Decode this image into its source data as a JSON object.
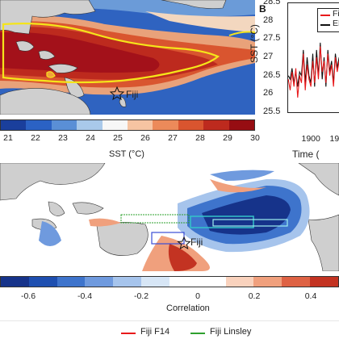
{
  "panelA": {
    "site_label": "Fiji",
    "colorbar": {
      "ticks": [
        "21",
        "22",
        "23",
        "24",
        "25",
        "26",
        "27",
        "28",
        "29",
        "30"
      ],
      "label": "SST (°C)",
      "colors": [
        "#1a3f9c",
        "#2b62c4",
        "#5a8fd6",
        "#a9c9ea",
        "#f7f7f7",
        "#f6c4a2",
        "#ec8a5a",
        "#d9552f",
        "#bd2a1e",
        "#960d12"
      ]
    }
  },
  "panelB": {
    "letter": "B",
    "ylabel": "SST (°C)",
    "xlabel": "Time (",
    "yticks": [
      "28.5",
      "28",
      "27.5",
      "27",
      "26.5",
      "26",
      "25.5"
    ],
    "xticks": [
      "1900",
      "19"
    ],
    "legend": [
      {
        "name": "Fiji F",
        "color": "#e8191b"
      },
      {
        "name": "ERS",
        "color": "#111111"
      }
    ]
  },
  "panelC": {
    "site_label": "Fiji",
    "colorbar": {
      "ticks": [
        "-0.6",
        "-0.4",
        "-0.2",
        "0",
        "0.2",
        "0.4"
      ],
      "label": "Correlation",
      "colors": [
        "#16338a",
        "#1e4fb0",
        "#3e74cc",
        "#6f9ade",
        "#a6c4ec",
        "#d7e6f6",
        "#ffffff",
        "#ffffff",
        "#f9d2bd",
        "#f0a07d",
        "#de6244",
        "#c33322"
      ]
    }
  },
  "bottom_legend": [
    {
      "name": "Fiji F14",
      "color": "#e8191b"
    },
    {
      "name": "Fiji Linsley",
      "color": "#2ea02e"
    }
  ],
  "chart_data": {
    "type": "line",
    "title": "",
    "xlabel": "Time (",
    "ylabel": "SST (°C)",
    "ylim": [
      25.5,
      28.5
    ],
    "xlim": [
      1875,
      1935
    ],
    "series": [
      {
        "name": "Fiji F",
        "x": [
          1876,
          1878,
          1880,
          1882,
          1884,
          1886,
          1888,
          1890,
          1892,
          1894,
          1896,
          1898,
          1900,
          1902,
          1904,
          1906,
          1908,
          1910,
          1912,
          1914,
          1916,
          1918,
          1920,
          1922,
          1924,
          1926,
          1928,
          1930
        ],
        "values": [
          26.4,
          26.1,
          26.6,
          26.2,
          26.7,
          25.9,
          26.5,
          26.3,
          27.1,
          26.1,
          26.8,
          26.4,
          26.2,
          26.9,
          26.3,
          27.0,
          26.4,
          27.3,
          26.6,
          26.9,
          26.3,
          27.1,
          26.5,
          26.8,
          26.2,
          27.0,
          26.6,
          26.9
        ]
      },
      {
        "name": "ERS",
        "x": [
          1876,
          1878,
          1880,
          1882,
          1884,
          1886,
          1888,
          1890,
          1892,
          1894,
          1896,
          1898,
          1900,
          1902,
          1904,
          1906,
          1908,
          1910,
          1912,
          1914,
          1916,
          1918,
          1920,
          1922,
          1924,
          1926,
          1928,
          1930
        ],
        "values": [
          26.5,
          26.4,
          26.7,
          26.3,
          26.6,
          26.2,
          26.6,
          26.5,
          27.2,
          26.3,
          27.0,
          26.5,
          26.3,
          27.1,
          26.2,
          27.2,
          26.5,
          27.4,
          26.4,
          27.0,
          26.2,
          27.2,
          26.6,
          26.9,
          26.3,
          27.1,
          26.7,
          27.0
        ]
      }
    ]
  }
}
